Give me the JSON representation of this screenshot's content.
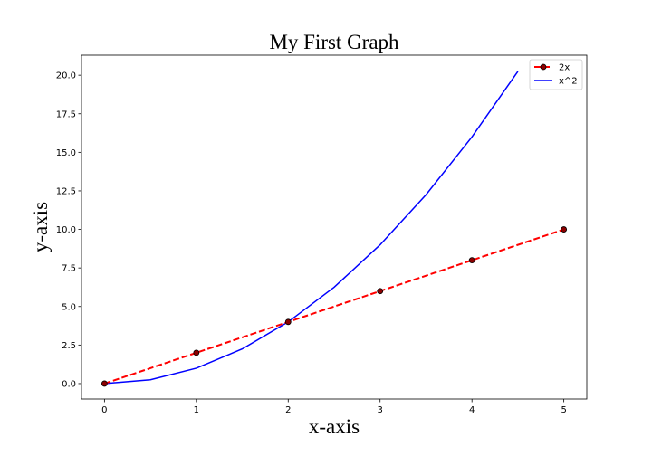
{
  "chart_data": {
    "type": "line",
    "title": "My First Graph",
    "xlabel": "x-axis",
    "ylabel": "y-axis",
    "xlim": [
      -0.25,
      5.25
    ],
    "ylim": [
      -1.0,
      21.3
    ],
    "x_ticks": [
      0,
      1,
      2,
      3,
      4,
      5
    ],
    "x_tick_labels": [
      "0",
      "1",
      "2",
      "3",
      "4",
      "5"
    ],
    "y_ticks": [
      0,
      2.5,
      5,
      7.5,
      10,
      12.5,
      15,
      17.5,
      20
    ],
    "y_tick_labels": [
      "0.0",
      "2.5",
      "5.0",
      "7.5",
      "10.0",
      "12.5",
      "15.0",
      "17.5",
      "20.0"
    ],
    "grid": false,
    "legend_position": "top-right",
    "series": [
      {
        "name": "2x",
        "color": "#ff0000",
        "marker_face": "#8b0000",
        "marker_edge": "#000000",
        "linestyle": "dashed",
        "marker": "circle",
        "x": [
          0,
          1,
          2,
          3,
          4,
          5
        ],
        "y": [
          0,
          2,
          4,
          6,
          8,
          10
        ]
      },
      {
        "name": "x^2",
        "color": "#0000ff",
        "linestyle": "solid",
        "marker": "none",
        "x": [
          0,
          0.5,
          1,
          1.5,
          2,
          2.5,
          3,
          3.5,
          4,
          4.5
        ],
        "y": [
          0,
          0.25,
          1,
          2.25,
          4,
          6.25,
          9,
          12.25,
          16,
          20.25
        ]
      }
    ]
  }
}
